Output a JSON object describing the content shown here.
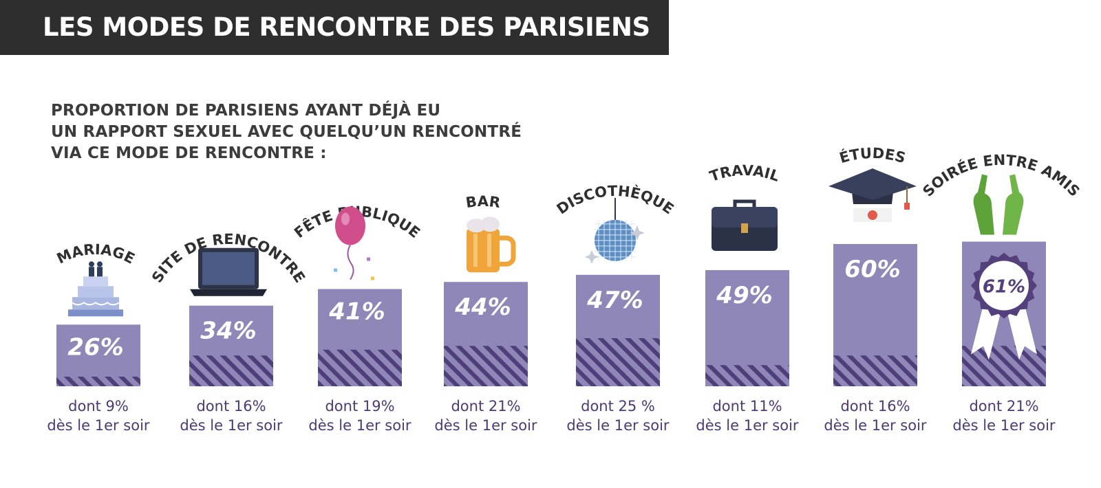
{
  "header": {
    "title": "LES MODES DE RENCONTRE DES PARISIENS"
  },
  "subtitle": {
    "lines": [
      "PROPORTION DE PARISIENS AYANT DÉJÀ EU",
      "UN RAPPORT SEXUEL AVEC QUELQU’UN RENCONTRÉ",
      "VIA CE MODE DE RENCONTRE :"
    ]
  },
  "colors": {
    "bar": "#8f87b8",
    "hatch": "#4e3f7a",
    "header_bg": "#2e2e2e",
    "note_text": "#4b3a73"
  },
  "chart_data": {
    "type": "bar",
    "categories": [
      "MARIAGE",
      "SITE DE RENCONTRE",
      "FÊTE PUBLIQUE",
      "BAR",
      "DISCOTHÈQUE",
      "TRAVAIL",
      "ÉTUDES",
      "SOIRÉE ENTRE AMIS"
    ],
    "series": [
      {
        "values": [
          26,
          34,
          41,
          44,
          47,
          49,
          60,
          61
        ],
        "value_labels": [
          "26%",
          "34%",
          "41%",
          "44%",
          "47%",
          "49%",
          "60%",
          "61%"
        ]
      },
      {
        "values": [
          9,
          16,
          19,
          21,
          25,
          11,
          16,
          21
        ]
      }
    ],
    "notes": [
      [
        "dont 9%",
        "dès le 1er soir"
      ],
      [
        "dont 16%",
        "dès le 1er soir"
      ],
      [
        "dont 19%",
        "dès le 1er soir"
      ],
      [
        "dont 21%",
        "dès le 1er soir"
      ],
      [
        "dont 25 %",
        "dès le 1er soir"
      ],
      [
        "dont 11%",
        "dès le 1er soir"
      ],
      [
        "dont 16%",
        "dès le 1er soir"
      ],
      [
        "dont 21%",
        "dès le 1er soir"
      ]
    ],
    "icons": [
      "wedding-cake-icon",
      "laptop-icon",
      "balloon-icon",
      "beer-mug-icon",
      "disco-ball-icon",
      "briefcase-icon",
      "graduation-cap-icon",
      "beer-bottles-icon"
    ],
    "ylim": [
      0,
      100
    ],
    "grid": false,
    "legend": "none"
  }
}
